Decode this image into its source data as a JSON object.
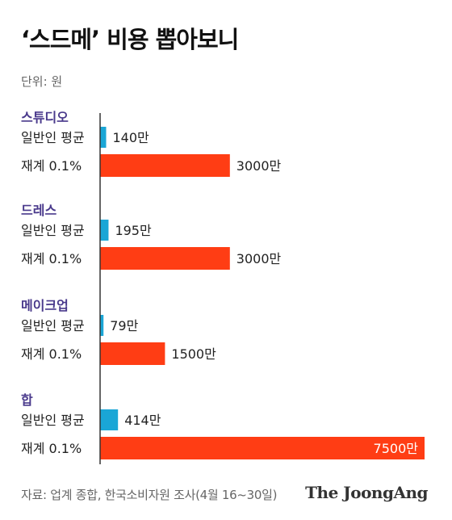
{
  "header": {
    "title": "‘스드메’ 비용 뽑아보니",
    "unit": "단위: 원"
  },
  "footer": {
    "source": "자료: 업계 종합, 한국소비자원 조사(4월 16~30일)",
    "brand": "The JoongAng"
  },
  "colors": {
    "average": "#1aa6d6",
    "top": "#ff3d14",
    "category": "#4a3a8c",
    "axis": "#333333"
  },
  "chart_data": {
    "type": "bar",
    "orientation": "horizontal",
    "categories": [
      "스튜디오",
      "드레스",
      "메이크업",
      "합"
    ],
    "series": [
      {
        "name": "일반인 평균",
        "values": [
          140,
          195,
          79,
          414
        ],
        "labels": [
          "140만",
          "195만",
          "79만",
          "414만"
        ]
      },
      {
        "name": "재계 0.1%",
        "values": [
          3000,
          3000,
          1500,
          7500
        ],
        "labels": [
          "3000만",
          "3000만",
          "1500만",
          "7500만"
        ]
      }
    ],
    "unit": "만 원",
    "xlim": [
      0,
      7500
    ],
    "grid": false,
    "legend": "none"
  }
}
